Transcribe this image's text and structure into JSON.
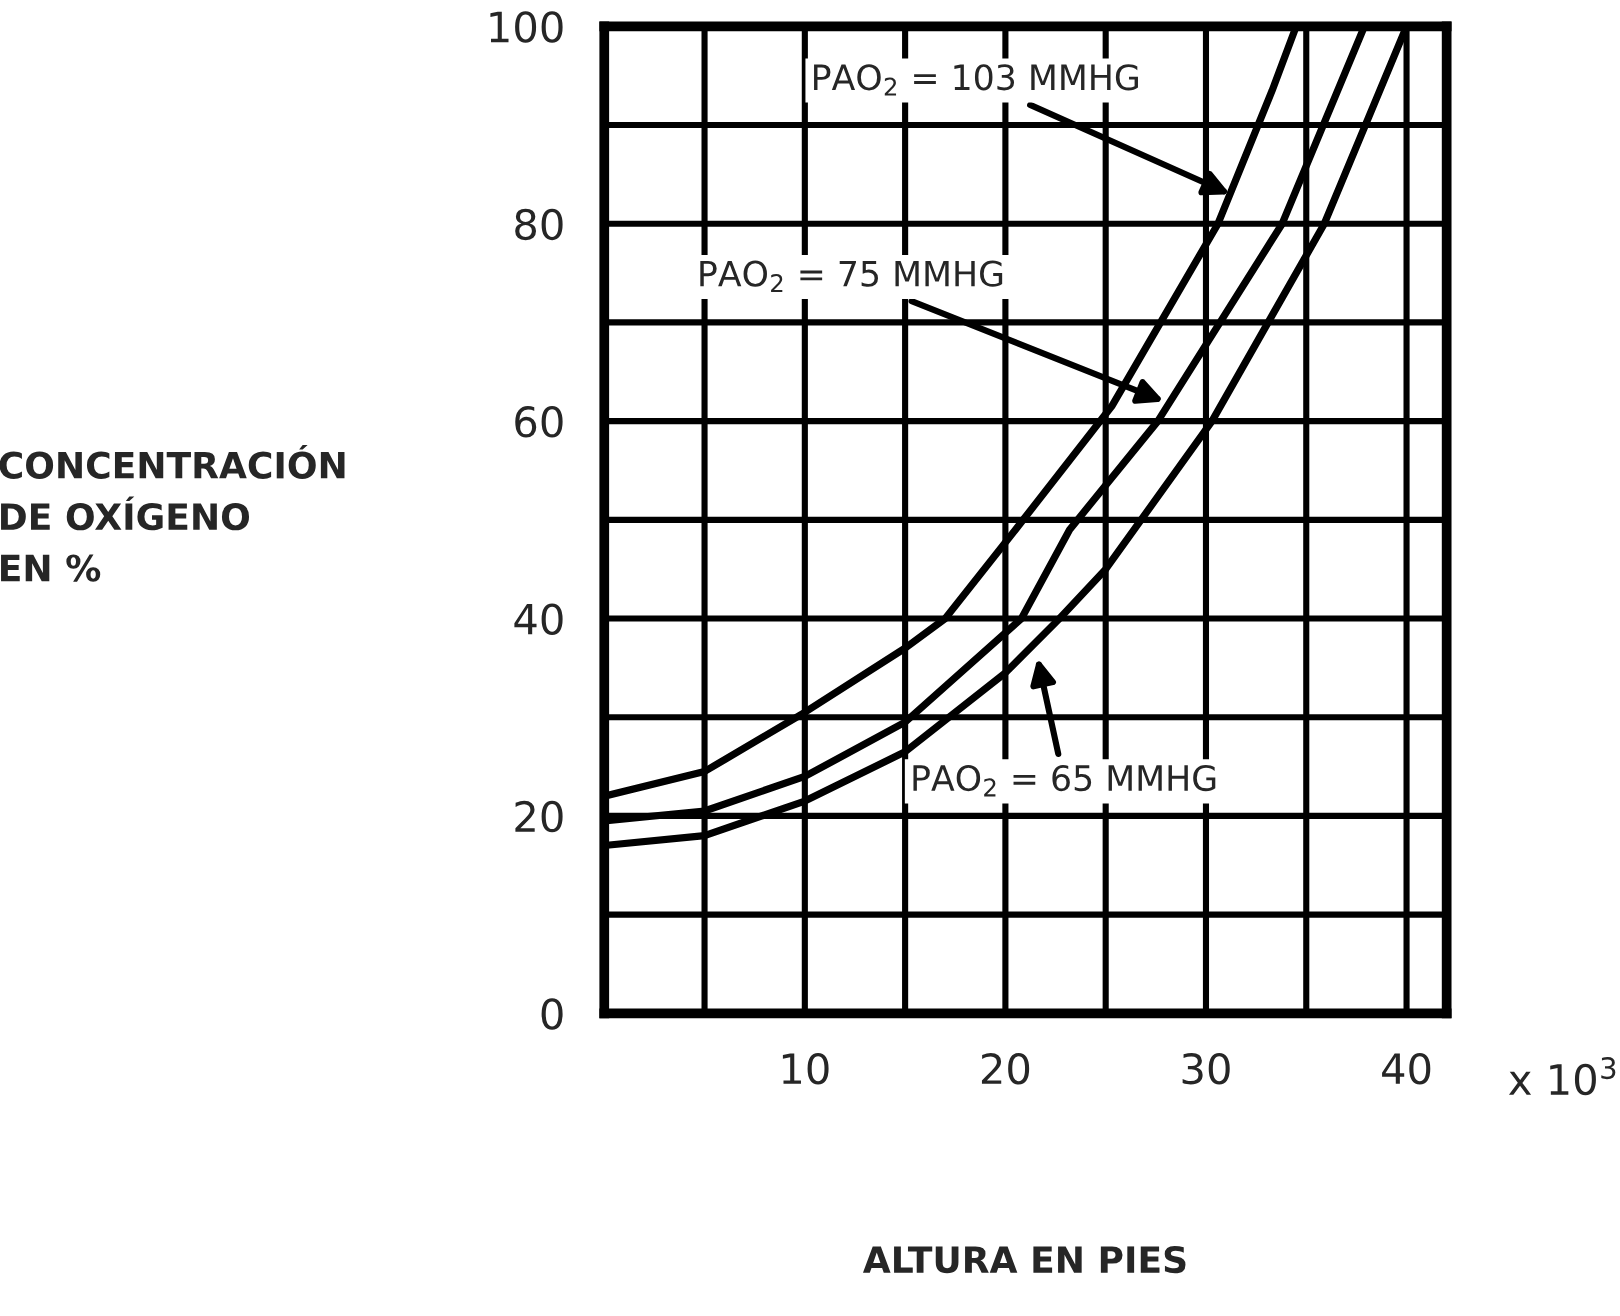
{
  "chart_data": {
    "type": "line",
    "xlabel": "ALTURA EN PIES",
    "ylabel": "CONCENTRACIÓN\nDE OXÍGENO\nEN %",
    "series": [
      {
        "color": "#000000",
        "x": [
          0,
          5,
          10,
          15,
          17,
          20.5,
          25.3,
          30.6,
          33.3,
          34.5
        ],
        "values": [
          22,
          24.5,
          30.5,
          37,
          40,
          49,
          61.5,
          80,
          93.5,
          100
        ]
      },
      {
        "color": "#000000",
        "x": [
          0,
          5,
          10,
          15,
          20.8,
          23.2,
          27.6,
          33.8,
          37.9
        ],
        "values": [
          19.5,
          20.5,
          24,
          29.5,
          40,
          49,
          60,
          80,
          100
        ]
      },
      {
        "color": "#000000",
        "x": [
          0,
          5,
          10,
          15,
          20,
          22.7,
          25,
          30.3,
          35.9,
          40
        ],
        "values": [
          17,
          18,
          21.5,
          26.5,
          34.5,
          40,
          45,
          60,
          80,
          100
        ]
      }
    ],
    "annotations": [
      {
        "text": "PAO$_{2}$ = 103 MMHG",
        "x": 31.2,
        "y": 83
      },
      {
        "text": "PAO$_{2}$ = 75 MMHG",
        "x": 27.9,
        "y": 62
      },
      {
        "text": "PAO$_{2}$ = 65 MMHG",
        "x": 21.6,
        "y": 36
      },
      "x 10$^{3}$"
    ],
    "xlim": [
      0,
      42
    ],
    "ylim": [
      0,
      100
    ],
    "xticks": [
      {
        "value": 5,
        "label": null
      },
      10,
      {
        "value": 15,
        "label": null
      },
      20,
      {
        "value": 25,
        "label": null
      },
      30,
      {
        "value": 35,
        "label": null
      },
      40
    ],
    "yticks": [
      0,
      {
        "value": 10,
        "label": null
      },
      20,
      {
        "value": 30,
        "label": null
      },
      40,
      {
        "value": 50,
        "label": null
      },
      60,
      {
        "value": 70,
        "label": null
      },
      80,
      {
        "value": 90,
        "label": null
      },
      100
    ],
    "grid": true,
    "marker": "none",
    "line_style": "solid",
    "legend": false
  }
}
